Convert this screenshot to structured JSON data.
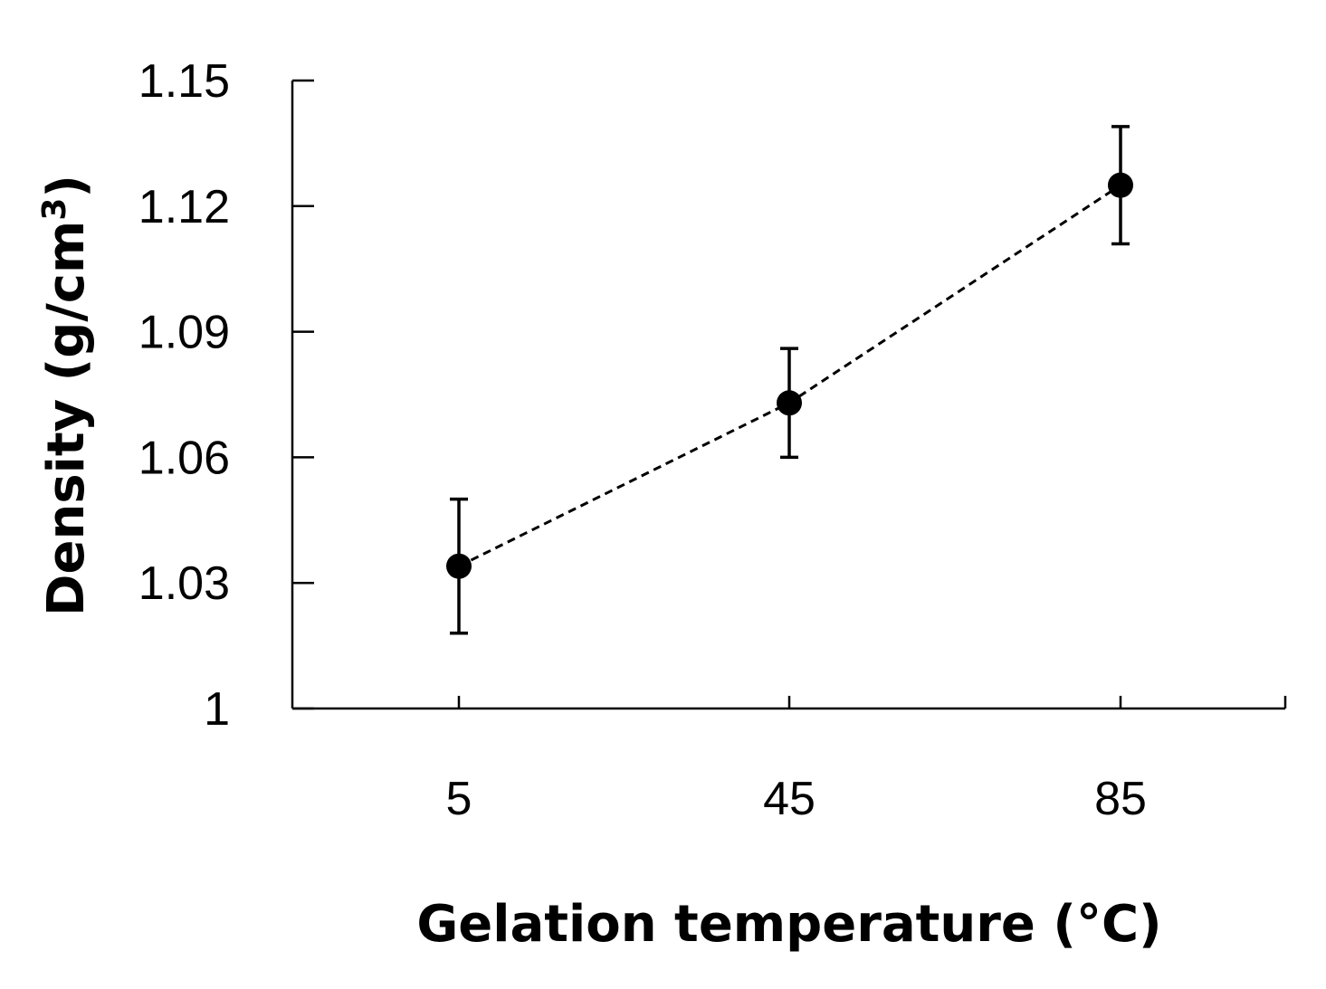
{
  "chart_data": {
    "type": "line",
    "title": "",
    "xlabel": "Gelation temperature (°C)",
    "ylabel_main": "Density (g/cm",
    "ylabel_sup": "3",
    "ylabel_close": ")",
    "categories": [
      "5",
      "45",
      "85"
    ],
    "yticks": [
      "1",
      "1.03",
      "1.06",
      "1.09",
      "1.12",
      "1.15"
    ],
    "ylim": [
      1.0,
      1.15
    ],
    "series": [
      {
        "name": "Density",
        "values": [
          1.034,
          1.073,
          1.125
        ],
        "errors": [
          0.016,
          0.013,
          0.014
        ],
        "line_style": "dashed",
        "marker": "filled-circle",
        "color": "#000000"
      }
    ],
    "grid": false,
    "legend": "none"
  }
}
